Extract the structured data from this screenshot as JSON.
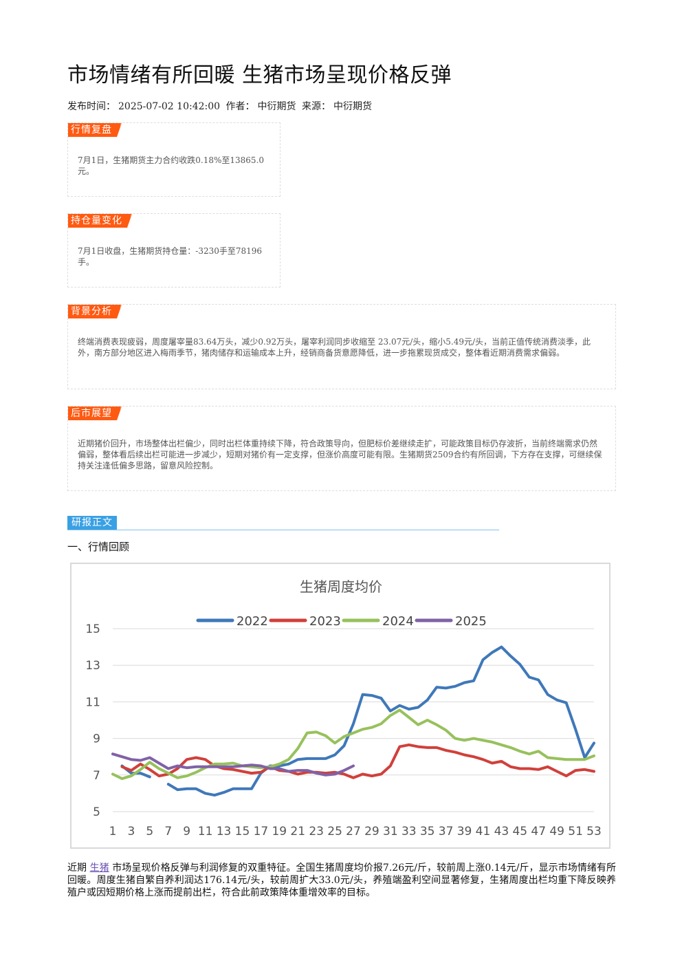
{
  "article": {
    "title": "市场情绪有所回暖 生猪市场呈现价格反弹",
    "publish_label": "发布时间：",
    "publish_time": "2025-07-02 10:42:00",
    "author_label": "作者：",
    "author": "中衍期货",
    "source_label": "来源：",
    "source": "中衍期货"
  },
  "sections": {
    "review": {
      "tag": "行情复盘",
      "text": "7月1日，生猪期货主力合约收跌0.18%至13865.0元。"
    },
    "position": {
      "tag": "持仓量变化",
      "text": "7月1日收盘，生猪期货持仓量：-3230手至78196手。"
    },
    "background": {
      "tag": "背景分析",
      "text": "终端消费表现疲弱，周度屠宰量83.64万头，减少0.92万头，屠宰利润同步收缩至 23.07元/头，缩小5.49元/头，当前正值传统消费淡季，此外，南方部分地区进入梅雨季节，猪肉储存和运输成本上升，经销商备货意愿降低，进一步拖累现货成交，整体看近期消费需求偏弱。"
    },
    "outlook": {
      "tag": "后市展望",
      "text": "近期猪价回升，市场整体出栏偏少，同时出栏体重持续下降，符合政策导向，但肥标价差继续走扩，可能政策目标仍存波折，当前终端需求仍然偏弱，整体看后续出栏可能进一步减少，短期对猪价有一定支撑，但涨价高度可能有限。生猪期货2509合约有所回调，下方存在支撑，可继续保持关注逢低偏多思路，留意风险控制。"
    }
  },
  "report": {
    "tag": "研报正文",
    "subhead": "一、行情回顾",
    "para_prefix": "近期",
    "para_link": "生猪",
    "para_rest": "市场呈现价格反弹与利润修复的双重特征。全国生猪周度均价报7.26元/斤，较前周上涨0.14元/斤，显示市场情绪有所回暖。周度生猪自繁自养利润达176.14元/头，较前周扩大33.0元/头，养殖端盈利空间显著修复，生猪周度出栏均重下降反映养殖户或因短期价格上涨而提前出栏，符合此前政策降体重增效率的目标。"
  },
  "chart_data": {
    "type": "line",
    "title": "生猪周度均价",
    "xlabel": "",
    "ylabel": "",
    "ylim": [
      5,
      15
    ],
    "yticks": [
      5,
      7,
      9,
      11,
      13,
      15
    ],
    "xlim": [
      1,
      53
    ],
    "xticks": [
      1,
      3,
      5,
      7,
      9,
      11,
      13,
      15,
      17,
      19,
      21,
      23,
      25,
      27,
      29,
      31,
      33,
      35,
      37,
      39,
      41,
      43,
      45,
      47,
      49,
      51,
      53
    ],
    "grid": true,
    "legend_position": "top",
    "series": [
      {
        "name": "2022",
        "color": "#3f78b9",
        "x": [
          2,
          3,
          4,
          5,
          7,
          8,
          9,
          10,
          11,
          12,
          13,
          14,
          15,
          16,
          17,
          18,
          19,
          20,
          21,
          22,
          23,
          24,
          25,
          26,
          27,
          28,
          29,
          30,
          31,
          32,
          33,
          34,
          35,
          36,
          37,
          38,
          39,
          40,
          41,
          42,
          43,
          44,
          45,
          46,
          47,
          48,
          49,
          50,
          51,
          52,
          53
        ],
        "y": [
          7.5,
          7.1,
          7.1,
          6.9,
          6.5,
          6.2,
          6.25,
          6.25,
          6.0,
          5.9,
          6.05,
          6.25,
          6.25,
          6.25,
          7.1,
          7.5,
          7.5,
          7.6,
          7.85,
          7.9,
          7.9,
          7.9,
          8.1,
          8.6,
          9.8,
          11.4,
          11.35,
          11.2,
          10.5,
          10.8,
          10.6,
          10.7,
          11.1,
          11.8,
          11.75,
          11.85,
          12.05,
          12.15,
          13.3,
          13.7,
          14.0,
          13.5,
          13.05,
          12.35,
          12.2,
          11.4,
          11.1,
          10.95,
          9.5,
          7.95,
          8.75
        ]
      },
      {
        "name": "2023",
        "color": "#d0403b",
        "x": [
          2,
          3,
          4,
          5,
          6,
          7,
          8,
          9,
          10,
          11,
          12,
          13,
          14,
          15,
          16,
          17,
          18,
          19,
          20,
          21,
          22,
          23,
          24,
          25,
          26,
          27,
          28,
          29,
          30,
          31,
          32,
          33,
          34,
          35,
          36,
          37,
          38,
          39,
          40,
          41,
          42,
          43,
          44,
          45,
          46,
          47,
          48,
          49,
          50,
          51,
          52,
          53
        ],
        "y": [
          7.45,
          7.25,
          7.6,
          7.3,
          6.95,
          7.05,
          7.35,
          7.85,
          7.95,
          7.85,
          7.5,
          7.35,
          7.3,
          7.2,
          7.1,
          7.15,
          7.45,
          7.25,
          7.2,
          7.05,
          7.15,
          7.15,
          7.1,
          7.15,
          7.05,
          6.85,
          7.05,
          6.95,
          7.05,
          7.5,
          8.55,
          8.65,
          8.55,
          8.5,
          8.5,
          8.35,
          8.25,
          8.1,
          8.0,
          7.85,
          7.65,
          7.75,
          7.45,
          7.35,
          7.35,
          7.3,
          7.45,
          7.2,
          6.95,
          7.25,
          7.3,
          7.2
        ]
      },
      {
        "name": "2024",
        "color": "#97c15c",
        "x": [
          1,
          2,
          3,
          4,
          5,
          6,
          7,
          8,
          9,
          10,
          11,
          12,
          13,
          14,
          15,
          16,
          17,
          18,
          19,
          20,
          21,
          22,
          23,
          24,
          25,
          26,
          27,
          28,
          29,
          30,
          31,
          32,
          33,
          34,
          35,
          36,
          37,
          38,
          39,
          40,
          41,
          42,
          43,
          44,
          45,
          46,
          47,
          48,
          49,
          50,
          51,
          52,
          53
        ],
        "y": [
          7.05,
          6.8,
          6.95,
          7.3,
          7.7,
          7.35,
          7.1,
          6.85,
          6.95,
          7.15,
          7.4,
          7.6,
          7.6,
          7.65,
          7.5,
          7.45,
          7.4,
          7.45,
          7.6,
          7.85,
          8.45,
          9.3,
          9.35,
          9.15,
          8.75,
          9.1,
          9.3,
          9.5,
          9.6,
          9.8,
          10.25,
          10.55,
          10.15,
          9.75,
          10.0,
          9.75,
          9.45,
          9.0,
          8.9,
          9.0,
          8.9,
          8.8,
          8.65,
          8.5,
          8.3,
          8.15,
          8.3,
          7.95,
          7.9,
          7.85,
          7.85,
          7.85,
          8.05
        ]
      },
      {
        "name": "2025",
        "color": "#8062a6",
        "x": [
          1,
          2,
          3,
          4,
          5,
          6,
          7,
          8,
          9,
          10,
          11,
          12,
          13,
          14,
          15,
          16,
          17,
          18,
          19,
          20,
          21,
          22,
          23,
          24,
          25,
          26,
          27
        ],
        "y": [
          8.15,
          8.0,
          7.85,
          7.8,
          7.95,
          7.65,
          7.35,
          7.5,
          7.4,
          7.45,
          7.45,
          7.45,
          7.45,
          7.45,
          7.5,
          7.55,
          7.5,
          7.35,
          7.35,
          7.2,
          7.25,
          7.25,
          7.1,
          7.0,
          7.05,
          7.25,
          7.5
        ]
      }
    ]
  }
}
